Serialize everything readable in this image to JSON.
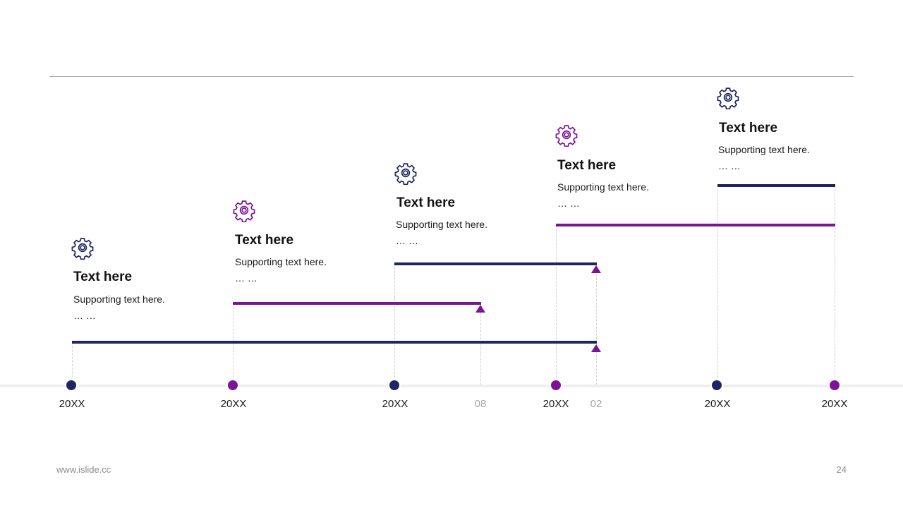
{
  "colors": {
    "navy": "#1f2560",
    "purple": "#7b1397",
    "axis": "#efefef",
    "rule": "#a6a6a6",
    "minor_label": "#a6a6a6"
  },
  "items": [
    {
      "title": "Text here",
      "sub1": "Supporting text here.",
      "sub2": "… …",
      "icon": "gear-icon",
      "color": "navy"
    },
    {
      "title": "Text here",
      "sub1": "Supporting text here.",
      "sub2": "… …",
      "icon": "gear-icon",
      "color": "purple"
    },
    {
      "title": "Text here",
      "sub1": "Supporting text here.",
      "sub2": "… …",
      "icon": "gear-icon",
      "color": "navy"
    },
    {
      "title": "Text here",
      "sub1": "Supporting text here.",
      "sub2": "… …",
      "icon": "gear-icon",
      "color": "purple"
    },
    {
      "title": "Text here",
      "sub1": "Supporting text here.",
      "sub2": "… …",
      "icon": "gear-icon",
      "color": "navy"
    }
  ],
  "axis_labels": [
    "20XX",
    "20XX",
    "20XX",
    "08",
    "20XX",
    "02",
    "20XX",
    "20XX"
  ],
  "footer": {
    "url": "www.islide.cc",
    "page": "24"
  }
}
